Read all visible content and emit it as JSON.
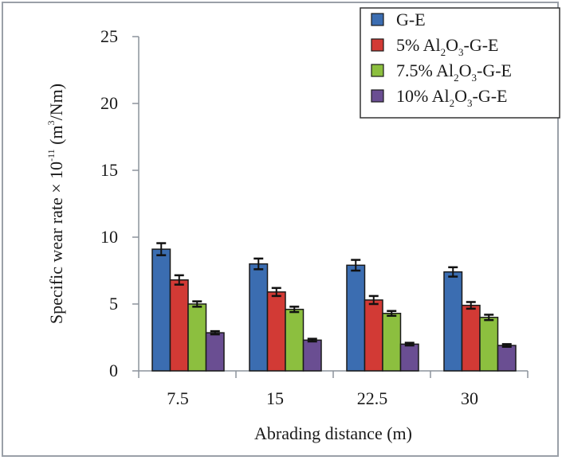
{
  "chart_data": {
    "type": "bar",
    "title": "",
    "xlabel": "Abrading distance (m)",
    "ylabel": {
      "main": "Specific wear rate × 10",
      "exponent": "-11",
      "unit_open": " (m",
      "unit_exponent": "3",
      "unit_close": "/Nm)"
    },
    "ylim": [
      0,
      25
    ],
    "yticks": [
      "0",
      "5",
      "10",
      "15",
      "20",
      "25"
    ],
    "categories": [
      "7.5",
      "15",
      "22.5",
      "30"
    ],
    "grid": false,
    "legend_position": "top-right",
    "series": [
      {
        "name": "G-E",
        "legend": {
          "pre": "G-E",
          "sub1": "",
          "mid": "",
          "sub2": "",
          "post": ""
        },
        "color": "#3b6db1",
        "values": [
          9.1,
          8.0,
          7.9,
          7.4
        ],
        "errors": [
          0.45,
          0.4,
          0.4,
          0.35
        ]
      },
      {
        "name": "5% Al2O3-G-E",
        "legend": {
          "pre": "5% Al",
          "sub1": "2",
          "mid": "O",
          "sub2": "3",
          "post": "-G-E"
        },
        "color": "#d23a35",
        "values": [
          6.8,
          5.9,
          5.3,
          4.9
        ],
        "errors": [
          0.35,
          0.3,
          0.3,
          0.25
        ]
      },
      {
        "name": "7.5% Al2O3-G-E",
        "legend": {
          "pre": "7.5% Al",
          "sub1": "2",
          "mid": "O",
          "sub2": "3",
          "post": "-G-E"
        },
        "color": "#8cbf3f",
        "values": [
          5.0,
          4.6,
          4.3,
          4.0
        ],
        "errors": [
          0.2,
          0.2,
          0.18,
          0.2
        ]
      },
      {
        "name": "10% Al2O3-G-E",
        "legend": {
          "pre": "10% Al",
          "sub1": "2",
          "mid": "O",
          "sub2": "3",
          "post": "-G-E"
        },
        "color": "#6a4e92",
        "values": [
          2.85,
          2.3,
          2.0,
          1.9
        ],
        "errors": [
          0.12,
          0.1,
          0.1,
          0.1
        ]
      }
    ]
  }
}
